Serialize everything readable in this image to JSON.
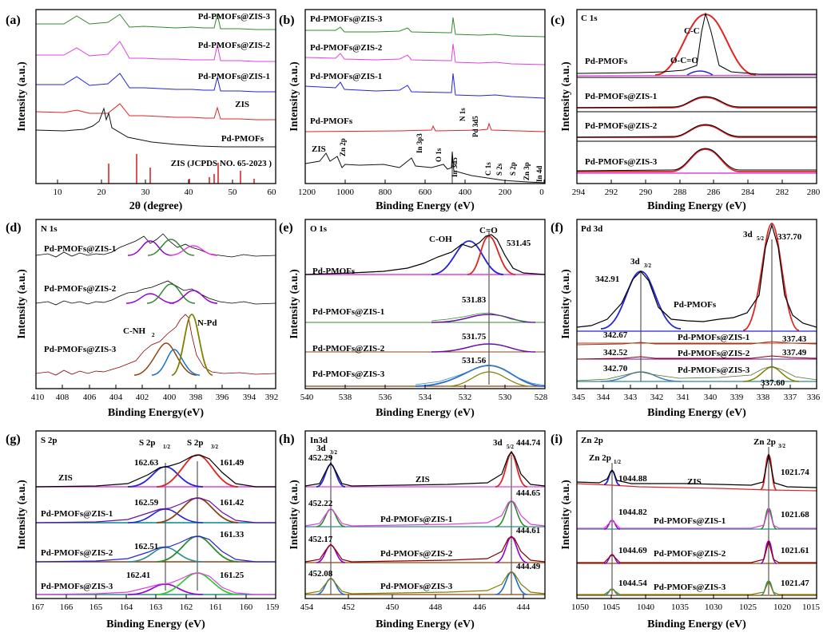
{
  "figure": {
    "panels": [
      {
        "letter": "(a)",
        "ylabel": "Intensity (a.u.)",
        "xlabel": "2θ (degree)",
        "xticks": [
          "10",
          "20",
          "30",
          "40",
          "50",
          "60"
        ],
        "traces": [
          {
            "label": "Pd-PMOFs@ZIS-3",
            "color": "#2e8b2e"
          },
          {
            "label": "Pd-PMOFs@ZIS-2",
            "color": "#e040e0"
          },
          {
            "label": "Pd-PMOFs@ZIS-1",
            "color": "#2424d8"
          },
          {
            "label": "ZIS",
            "color": "#e02424"
          },
          {
            "label": "Pd-PMOFs",
            "color": "#111111"
          }
        ],
        "reference": "ZIS (JCPDS NO. 65-2023 )"
      },
      {
        "letter": "(b)",
        "ylabel": "Intensity (a.u.)",
        "xlabel": "Binding Energy (eV)",
        "xticks": [
          "1200",
          "1000",
          "800",
          "600",
          "400",
          "200",
          "0"
        ],
        "traces": [
          {
            "label": "Pd-PMOFs@ZIS-3",
            "color": "#2e8b2e"
          },
          {
            "label": "Pd-PMOFs@ZIS-2",
            "color": "#e040e0"
          },
          {
            "label": "Pd-PMOFs@ZIS-1",
            "color": "#2424d8"
          },
          {
            "label": "Pd-PMOFs",
            "color": "#e02424"
          },
          {
            "label": "ZIS",
            "color": "#111111"
          }
        ],
        "peaks": [
          "Zn 2p",
          "In 3p3",
          "O 1s",
          "In 3d5",
          "N 1s",
          "Pd 3d5",
          "C 1s",
          "S 2s",
          "S 2p",
          "Zn 3p",
          "In 4d"
        ]
      },
      {
        "letter": "(c)",
        "title": "C 1s",
        "ylabel": "Intensity (a.u.)",
        "xlabel": "Binding Energy (eV)",
        "xticks": [
          "294",
          "292",
          "290",
          "288",
          "286",
          "284",
          "282",
          "280"
        ],
        "traces": [
          "Pd-PMOFs",
          "Pd-PMOFs@ZIS-1",
          "Pd-PMOFs@ZIS-2",
          "Pd-PMOFs@ZIS-3"
        ],
        "peaks": [
          "O-C=O",
          "C-C"
        ]
      },
      {
        "letter": "(d)",
        "title": "N 1s",
        "ylabel": "Intensity (a.u.)",
        "xlabel": "Binding Energy(eV)",
        "xticks": [
          "410",
          "408",
          "406",
          "404",
          "402",
          "400",
          "398",
          "396",
          "394",
          "392"
        ],
        "traces": [
          "Pd-PMOFs@ZIS-1",
          "Pd-PMOFs@ZIS-2",
          "Pd-PMOFs@ZIS-3"
        ],
        "peaks": [
          "C-NH",
          "2",
          "N-Pd"
        ]
      },
      {
        "letter": "(e)",
        "title": "O 1s",
        "ylabel": "Intensity (a.u.)",
        "xlabel": "Binding Energy (eV)",
        "xticks": [
          "540",
          "538",
          "536",
          "534",
          "532",
          "530",
          "528"
        ],
        "traces": [
          "Pd-PMOFs",
          "Pd-PMOFs@ZIS-1",
          "Pd-PMOFs@ZIS-2",
          "Pd-PMOFs@ZIS-3"
        ],
        "peaks": [
          "C-OH",
          "C=O"
        ],
        "values": [
          "531.45",
          "531.83",
          "531.75",
          "531.56"
        ]
      },
      {
        "letter": "(f)",
        "title": "Pd 3d",
        "ylabel": "Intensity (a.u.)",
        "xlabel": "Binding Energy (eV)",
        "xticks": [
          "345",
          "344",
          "343",
          "342",
          "341",
          "340",
          "339",
          "338",
          "337",
          "336"
        ],
        "traces": [
          "Pd-PMOFs",
          "Pd-PMOFs@ZIS-1",
          "Pd-PMOFs@ZIS-2",
          "Pd-PMOFs@ZIS-3"
        ],
        "peaks": [
          "3d",
          "3/2",
          "3d",
          "5/2"
        ],
        "values": [
          "342.91",
          "337.70",
          "342.67",
          "337.43",
          "342.52",
          "337.49",
          "342.70",
          "337.60"
        ]
      },
      {
        "letter": "(g)",
        "title": "S 2p",
        "ylabel": "Intensity (a.u.)",
        "xlabel": "Binding Energy (eV)",
        "xticks": [
          "167",
          "166",
          "165",
          "164",
          "163",
          "162",
          "161",
          "160",
          "159"
        ],
        "traces": [
          "ZIS",
          "Pd-PMOFs@ZIS-1",
          "Pd-PMOFs@ZIS-2",
          "Pd-PMOFs@ZIS-3"
        ],
        "peaks": [
          "S 2p",
          "1/2",
          "S 2p",
          "3/2"
        ],
        "values": [
          "162.63",
          "161.49",
          "162.59",
          "161.42",
          "162.51",
          "161.33",
          "162.41",
          "161.25"
        ]
      },
      {
        "letter": "(h)",
        "title": "In3d",
        "ylabel": "Intensity (a.u.)",
        "xlabel": "Binding Energy (eV)",
        "xticks": [
          "454",
          "452",
          "450",
          "448",
          "446",
          "444"
        ],
        "traces": [
          "ZIS",
          "Pd-PMOFs@ZIS-1",
          "Pd-PMOFs@ZIS-2",
          "Pd-PMOFs@ZIS-3"
        ],
        "peaks": [
          "3d",
          "3/2",
          "3d",
          "5/2"
        ],
        "values": [
          "452.29",
          "444.74",
          "452.22",
          "444.65",
          "452.17",
          "444.61",
          "452.08",
          "444.49"
        ]
      },
      {
        "letter": "(i)",
        "title": "Zn 2p",
        "ylabel": "Intensity (a.u.)",
        "xlabel": "Binding Energy (eV)",
        "xticks": [
          "1050",
          "1045",
          "1040",
          "1035",
          "1030",
          "1025",
          "1020",
          "1015"
        ],
        "traces": [
          "ZIS",
          "Pd-PMOFs@ZIS-1",
          "Pd-PMOFs@ZIS-2",
          "Pd-PMOFs@ZIS-3"
        ],
        "peaks": [
          "Zn 2p",
          "1/2",
          "Zn 2p",
          "3/2"
        ],
        "values": [
          "1044.88",
          "1021.74",
          "1044.82",
          "1021.68",
          "1044.69",
          "1021.61",
          "1044.54",
          "1021.47"
        ]
      }
    ]
  },
  "chart_data": [
    {
      "type": "line",
      "panel": "(a)",
      "xlabel": "2θ (degree)",
      "ylabel": "Intensity (a.u.)",
      "xlim": [
        5,
        60
      ],
      "series": [
        {
          "name": "Pd-PMOFs@ZIS-3",
          "peaks_x": [
            21,
            27.5,
            47.5
          ]
        },
        {
          "name": "Pd-PMOFs@ZIS-2",
          "peaks_x": [
            21,
            27.5,
            47.5
          ]
        },
        {
          "name": "Pd-PMOFs@ZIS-1",
          "peaks_x": [
            21,
            27.5,
            47.5
          ]
        },
        {
          "name": "ZIS",
          "peaks_x": [
            27.5,
            47.5
          ]
        },
        {
          "name": "Pd-PMOFs",
          "peaks_x": [
            20.8,
            21.8
          ]
        },
        {
          "name": "ZIS (JCPDS NO. 65-2023 )",
          "sticks_x": [
            21.5,
            27.7,
            30.5,
            39.5,
            45.5,
            46.5,
            47.5,
            52.5,
            55.5
          ],
          "sticks_h": [
            0.45,
            1.0,
            0.35,
            0.12,
            0.15,
            0.2,
            0.55,
            0.28,
            0.12
          ]
        }
      ]
    },
    {
      "type": "line",
      "panel": "(b)",
      "xlabel": "Binding Energy (eV)",
      "ylabel": "Intensity (a.u.)",
      "xlim": [
        1200,
        0
      ],
      "series": [
        {
          "name": "Pd-PMOFs@ZIS-3"
        },
        {
          "name": "Pd-PMOFs@ZIS-2"
        },
        {
          "name": "Pd-PMOFs@ZIS-1"
        },
        {
          "name": "Pd-PMOFs"
        },
        {
          "name": "ZIS"
        }
      ],
      "annotations": [
        {
          "label": "Zn 2p",
          "x": 1022
        },
        {
          "label": "In 3p3",
          "x": 703
        },
        {
          "label": "O 1s",
          "x": 531
        },
        {
          "label": "In 3d5",
          "x": 445
        },
        {
          "label": "N 1s",
          "x": 399
        },
        {
          "label": "Pd 3d5",
          "x": 337
        },
        {
          "label": "C 1s",
          "x": 285
        },
        {
          "label": "S 2s",
          "x": 226
        },
        {
          "label": "S 2p",
          "x": 162
        },
        {
          "label": "Zn 3p",
          "x": 89
        },
        {
          "label": "In 4d",
          "x": 18
        }
      ]
    },
    {
      "type": "line",
      "panel": "(c)",
      "title": "C 1s",
      "xlabel": "Binding Energy (eV)",
      "ylabel": "Intensity (a.u.)",
      "xlim": [
        294,
        280
      ],
      "series": [
        {
          "name": "Pd-PMOFs",
          "peaks": [
            {
              "x": 284.8,
              "h": 1.0
            },
            {
              "x": 289.1,
              "h": 0.08
            }
          ]
        },
        {
          "name": "Pd-PMOFs@ZIS-1",
          "peaks": [
            {
              "x": 284.8,
              "h": 0.3
            }
          ]
        },
        {
          "name": "Pd-PMOFs@ZIS-2",
          "peaks": [
            {
              "x": 284.8,
              "h": 0.28
            }
          ]
        },
        {
          "name": "Pd-PMOFs@ZIS-3",
          "peaks": [
            {
              "x": 284.8,
              "h": 0.32
            },
            {
              "x": 289.0,
              "h": 0.03
            }
          ]
        }
      ]
    },
    {
      "type": "line",
      "panel": "(d)",
      "title": "N 1s",
      "xlabel": "Binding Energy(eV)",
      "ylabel": "Intensity (a.u.)",
      "xlim": [
        410,
        392
      ],
      "series": [
        {
          "name": "Pd-PMOFs@ZIS-1",
          "peaks": [
            {
              "x": 401.2,
              "h": 0.4
            },
            {
              "x": 399.8,
              "h": 0.45
            },
            {
              "x": 398.3,
              "h": 0.25
            }
          ]
        },
        {
          "name": "Pd-PMOFs@ZIS-2",
          "peaks": [
            {
              "x": 401.2,
              "h": 0.3
            },
            {
              "x": 399.8,
              "h": 0.45
            },
            {
              "x": 398.3,
              "h": 0.35
            }
          ]
        },
        {
          "name": "Pd-PMOFs@ZIS-3",
          "peaks": [
            {
              "x": 400.9,
              "h": 0.5
            },
            {
              "x": 399.9,
              "h": 0.55
            },
            {
              "x": 398.4,
              "h": 1.0
            }
          ]
        }
      ]
    },
    {
      "type": "line",
      "panel": "(e)",
      "title": "O 1s",
      "xlabel": "Binding Energy (eV)",
      "ylabel": "Intensity (a.u.)",
      "xlim": [
        540,
        528
      ],
      "series": [
        {
          "name": "Pd-PMOFs",
          "peaks": [
            {
              "x": 532.9,
              "h": 0.85
            },
            {
              "x": 531.45,
              "h": 1.0
            }
          ]
        },
        {
          "name": "Pd-PMOFs@ZIS-1",
          "peaks": [
            {
              "x": 531.83,
              "h": 0.18
            }
          ]
        },
        {
          "name": "Pd-PMOFs@ZIS-2",
          "peaks": [
            {
              "x": 531.75,
              "h": 0.2
            }
          ]
        },
        {
          "name": "Pd-PMOFs@ZIS-3",
          "peaks": [
            {
              "x": 531.56,
              "h": 0.45
            }
          ]
        }
      ]
    },
    {
      "type": "line",
      "panel": "(f)",
      "title": "Pd 3d",
      "xlabel": "Binding Energy (eV)",
      "ylabel": "Intensity (a.u.)",
      "xlim": [
        345,
        336
      ],
      "series": [
        {
          "name": "Pd-PMOFs",
          "peaks": [
            {
              "x": 342.91,
              "h": 0.6
            },
            {
              "x": 337.7,
              "h": 1.0
            }
          ]
        },
        {
          "name": "Pd-PMOFs@ZIS-1",
          "peaks": [
            {
              "x": 342.67,
              "h": 0.02
            },
            {
              "x": 337.43,
              "h": 0.03
            }
          ]
        },
        {
          "name": "Pd-PMOFs@ZIS-2",
          "peaks": [
            {
              "x": 342.52,
              "h": 0.02
            },
            {
              "x": 337.49,
              "h": 0.03
            }
          ]
        },
        {
          "name": "Pd-PMOFs@ZIS-3",
          "peaks": [
            {
              "x": 342.7,
              "h": 0.08
            },
            {
              "x": 337.6,
              "h": 0.12
            }
          ]
        }
      ]
    },
    {
      "type": "line",
      "panel": "(g)",
      "title": "S 2p",
      "xlabel": "Binding Energy (eV)",
      "ylabel": "Intensity (a.u.)",
      "xlim": [
        167,
        159
      ],
      "series": [
        {
          "name": "ZIS",
          "peaks": [
            {
              "x": 162.63,
              "h": 0.5
            },
            {
              "x": 161.49,
              "h": 1.0
            }
          ]
        },
        {
          "name": "Pd-PMOFs@ZIS-1",
          "peaks": [
            {
              "x": 162.59,
              "h": 0.45
            },
            {
              "x": 161.42,
              "h": 0.9
            }
          ]
        },
        {
          "name": "Pd-PMOFs@ZIS-2",
          "peaks": [
            {
              "x": 162.51,
              "h": 0.45
            },
            {
              "x": 161.33,
              "h": 0.9
            }
          ]
        },
        {
          "name": "Pd-PMOFs@ZIS-3",
          "peaks": [
            {
              "x": 162.41,
              "h": 0.4
            },
            {
              "x": 161.25,
              "h": 0.8
            }
          ]
        }
      ]
    },
    {
      "type": "line",
      "panel": "(h)",
      "title": "In3d",
      "xlabel": "Binding Energy (eV)",
      "ylabel": "Intensity (a.u.)",
      "xlim": [
        454,
        443
      ],
      "series": [
        {
          "name": "ZIS",
          "peaks": [
            {
              "x": 452.29,
              "h": 0.7
            },
            {
              "x": 444.74,
              "h": 1.0
            }
          ]
        },
        {
          "name": "Pd-PMOFs@ZIS-1",
          "peaks": [
            {
              "x": 452.22,
              "h": 0.6
            },
            {
              "x": 444.65,
              "h": 0.85
            }
          ]
        },
        {
          "name": "Pd-PMOFs@ZIS-2",
          "peaks": [
            {
              "x": 452.17,
              "h": 0.6
            },
            {
              "x": 444.61,
              "h": 0.85
            }
          ]
        },
        {
          "name": "Pd-PMOFs@ZIS-3",
          "peaks": [
            {
              "x": 452.08,
              "h": 0.55
            },
            {
              "x": 444.49,
              "h": 0.8
            }
          ]
        }
      ]
    },
    {
      "type": "line",
      "panel": "(i)",
      "title": "Zn 2p",
      "xlabel": "Binding Energy (eV)",
      "ylabel": "Intensity (a.u.)",
      "xlim": [
        1050,
        1015
      ],
      "series": [
        {
          "name": "ZIS",
          "peaks": [
            {
              "x": 1044.88,
              "h": 0.45
            },
            {
              "x": 1021.74,
              "h": 1.0
            }
          ]
        },
        {
          "name": "Pd-PMOFs@ZIS-1",
          "peaks": [
            {
              "x": 1044.82,
              "h": 0.3
            },
            {
              "x": 1021.68,
              "h": 0.65
            }
          ]
        },
        {
          "name": "Pd-PMOFs@ZIS-2",
          "peaks": [
            {
              "x": 1044.69,
              "h": 0.3
            },
            {
              "x": 1021.61,
              "h": 0.65
            }
          ]
        },
        {
          "name": "Pd-PMOFs@ZIS-3",
          "peaks": [
            {
              "x": 1044.54,
              "h": 0.2
            },
            {
              "x": 1021.47,
              "h": 0.45
            }
          ]
        }
      ]
    }
  ]
}
